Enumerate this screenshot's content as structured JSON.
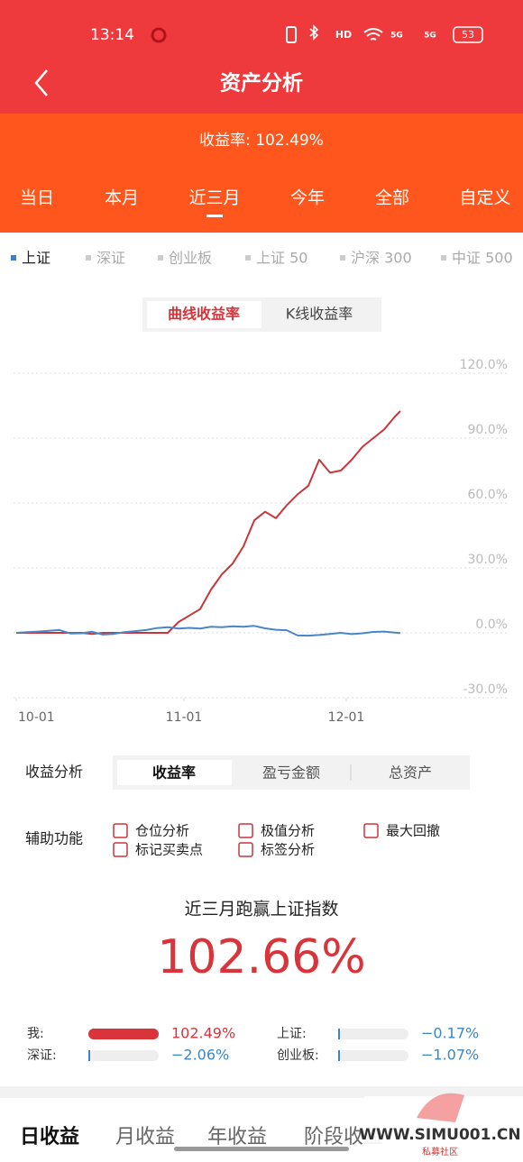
{
  "status_bar": {
    "time": "13:14",
    "icons": [
      "HD",
      "5G",
      "5G"
    ],
    "battery": "53"
  },
  "header": {
    "title": "资产分析"
  },
  "return_rate": "收益率: 102.49%",
  "period_tabs": {
    "items": [
      "当日",
      "本月",
      "近三月",
      "今年",
      "全部",
      "自定义"
    ],
    "active": 2
  },
  "index_tabs": {
    "items": [
      "上证",
      "深证",
      "创业板",
      "上证 50",
      "沪深 300",
      "中证 500"
    ],
    "active": 0
  },
  "chart_mode": {
    "items": [
      "曲线收益率",
      "K线收益率"
    ],
    "active": 0
  },
  "chart_data": {
    "type": "line",
    "grid": true,
    "x": [
      0,
      2,
      4,
      6,
      8,
      10,
      12,
      14,
      16,
      18,
      20,
      22,
      24,
      26,
      28,
      30,
      32,
      34,
      36,
      38,
      40,
      42,
      44,
      46,
      48,
      50,
      52,
      54,
      56,
      58,
      60,
      62,
      64,
      66,
      68,
      70,
      71
    ],
    "xlim": [
      0,
      91
    ],
    "xticks": [
      {
        "value": 0,
        "label": "10-01"
      },
      {
        "value": 31,
        "label": "11-01"
      },
      {
        "value": 61,
        "label": "12-01"
      }
    ],
    "ylim": [
      -30,
      120
    ],
    "yticks": [
      {
        "value": 120,
        "label": "120.0%"
      },
      {
        "value": 90,
        "label": "90.0%"
      },
      {
        "value": 60,
        "label": "60.0%"
      },
      {
        "value": 30,
        "label": "30.0%"
      },
      {
        "value": 0,
        "label": "0.0%"
      },
      {
        "value": -30,
        "label": "-30.0%"
      }
    ],
    "series": [
      {
        "color": "#c8363a",
        "values": [
          0,
          0,
          0,
          0,
          0,
          0,
          0,
          -0.5,
          0,
          0,
          0,
          0,
          0,
          0,
          0,
          5,
          8,
          11,
          20,
          27,
          32,
          40,
          52,
          56,
          53,
          59,
          64,
          68,
          80,
          74,
          75,
          80,
          86,
          90,
          94,
          100,
          102.49
        ]
      },
      {
        "color": "#4a86c8",
        "values": [
          0,
          0.3,
          0.6,
          0.9,
          1.3,
          -0.3,
          -0.2,
          0.5,
          -0.8,
          -0.5,
          0.3,
          0.8,
          1.3,
          2.2,
          2.6,
          2.0,
          2.3,
          2.0,
          2.8,
          2.6,
          3.0,
          2.8,
          3.2,
          2.1,
          1.4,
          1.2,
          -1.2,
          -1.3,
          -1.0,
          -0.5,
          0.0,
          -0.6,
          -0.2,
          0.4,
          0.6,
          0.1,
          -0.17
        ]
      }
    ]
  },
  "analysis": {
    "label": "收益分析",
    "items": [
      "收益率",
      "盈亏金额",
      "总资产"
    ],
    "active": 0
  },
  "aux": {
    "label": "辅助功能",
    "options": [
      "仓位分析",
      "极值分析",
      "最大回撤",
      "标记买卖点",
      "标签分析"
    ]
  },
  "summary": {
    "headline": "近三月跑赢上证指数",
    "value": "102.66%"
  },
  "comparison": [
    {
      "label": "我:",
      "value": 102.49,
      "value_label": "102.49%"
    },
    {
      "label": "上证:",
      "value": -0.17,
      "value_label": "−0.17%"
    },
    {
      "label": "深证:",
      "value": -2.06,
      "value_label": "−2.06%"
    },
    {
      "label": "创业板:",
      "value": -1.07,
      "value_label": "−1.07%"
    }
  ],
  "bottom_tabs": {
    "items": [
      "日收益",
      "月收益",
      "年收益",
      "阶段收益"
    ],
    "active": 0
  },
  "watermark": {
    "url": "WWW.SIMU001.CN",
    "name": "私募社区"
  }
}
